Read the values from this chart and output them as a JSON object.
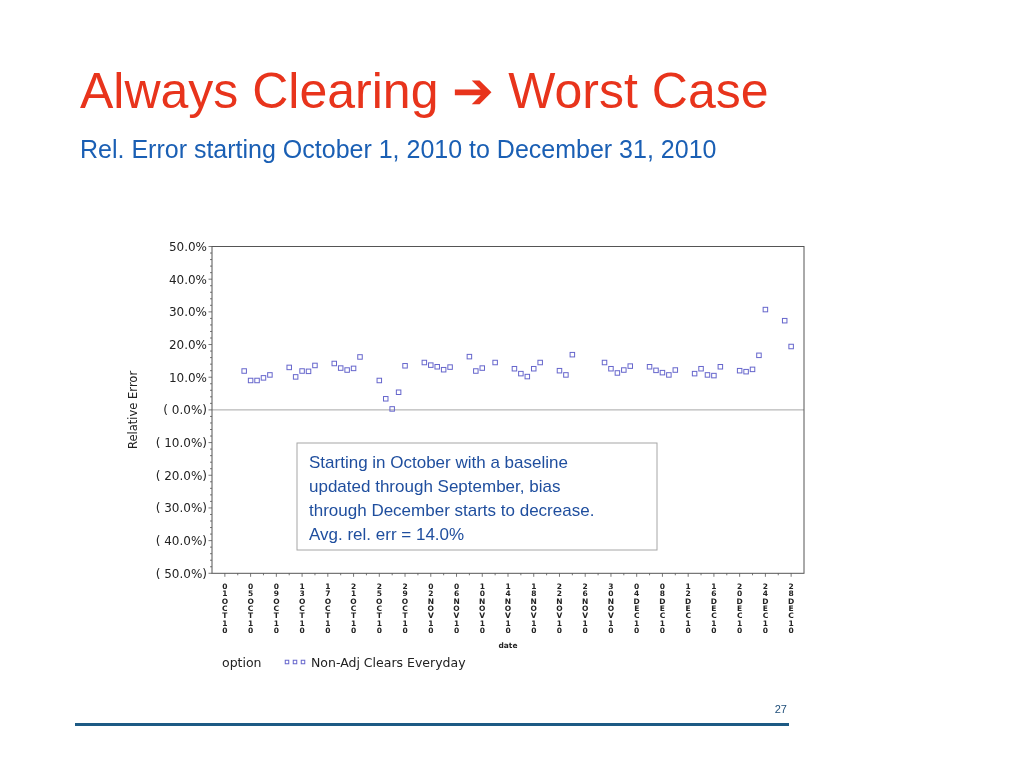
{
  "chart_data": {
    "type": "scatter",
    "title": "Always Clearing ➔ Worst Case",
    "subtitle": "Rel. Error starting October 1, 2010 to December 31, 2010",
    "xlabel": "date",
    "ylabel": "Relative Error",
    "legend_title": "option",
    "legend": "bottom",
    "marker": "square",
    "x": [
      "2010-10-04",
      "2010-10-05",
      "2010-10-06",
      "2010-10-07",
      "2010-10-08",
      "2010-10-11",
      "2010-10-12",
      "2010-10-13",
      "2010-10-14",
      "2010-10-15",
      "2010-10-18",
      "2010-10-19",
      "2010-10-20",
      "2010-10-21",
      "2010-10-22",
      "2010-10-25",
      "2010-10-26",
      "2010-10-27",
      "2010-10-28",
      "2010-10-29",
      "2010-11-01",
      "2010-11-02",
      "2010-11-03",
      "2010-11-04",
      "2010-11-05",
      "2010-11-08",
      "2010-11-09",
      "2010-11-10",
      "2010-11-12",
      "2010-11-15",
      "2010-11-16",
      "2010-11-17",
      "2010-11-18",
      "2010-11-19",
      "2010-11-22",
      "2010-11-23",
      "2010-11-24",
      "2010-11-29",
      "2010-11-30",
      "2010-12-01",
      "2010-12-02",
      "2010-12-03",
      "2010-12-06",
      "2010-12-07",
      "2010-12-08",
      "2010-12-09",
      "2010-12-10",
      "2010-12-13",
      "2010-12-14",
      "2010-12-15",
      "2010-12-16",
      "2010-12-17",
      "2010-12-20",
      "2010-12-21",
      "2010-12-22",
      "2010-12-23",
      "2010-12-24",
      "2010-12-27",
      "2010-12-28"
    ],
    "series": [
      {
        "name": "Non-Adj Clears Everyday",
        "color": "#6666cc",
        "values": [
          11.9,
          9.0,
          9.0,
          9.8,
          10.7,
          13.0,
          10.1,
          11.9,
          11.8,
          13.6,
          14.2,
          12.8,
          12.2,
          12.7,
          16.2,
          9.0,
          3.4,
          0.3,
          5.4,
          13.5,
          14.5,
          13.7,
          13.2,
          12.3,
          13.1,
          16.3,
          11.9,
          12.8,
          14.5,
          12.6,
          11.1,
          10.2,
          12.6,
          14.5,
          12.0,
          10.7,
          16.9,
          14.5,
          12.6,
          11.3,
          12.2,
          13.4,
          13.2,
          12.1,
          11.4,
          10.7,
          12.2,
          11.1,
          12.6,
          10.7,
          10.5,
          13.2,
          12.0,
          11.7,
          12.4,
          16.7,
          30.7,
          27.3,
          19.4
        ]
      }
    ],
    "xlim": [
      "2010-09-29",
      "2010-12-30"
    ],
    "xticks": [
      {
        "value": "2010-10-01",
        "label": "01OCT10"
      },
      {
        "value": "2010-10-03",
        "label": null
      },
      {
        "value": "2010-10-05",
        "label": "05OCT10"
      },
      {
        "value": "2010-10-07",
        "label": null
      },
      {
        "value": "2010-10-09",
        "label": "09OCT10"
      },
      {
        "value": "2010-10-11",
        "label": null
      },
      {
        "value": "2010-10-13",
        "label": "13OCT10"
      },
      {
        "value": "2010-10-15",
        "label": null
      },
      {
        "value": "2010-10-17",
        "label": "17OCT10"
      },
      {
        "value": "2010-10-19",
        "label": null
      },
      {
        "value": "2010-10-21",
        "label": "21OCT10"
      },
      {
        "value": "2010-10-23",
        "label": null
      },
      {
        "value": "2010-10-25",
        "label": "25OCT10"
      },
      {
        "value": "2010-10-27",
        "label": null
      },
      {
        "value": "2010-10-29",
        "label": "29OCT10"
      },
      {
        "value": "2010-10-31",
        "label": null
      },
      {
        "value": "2010-11-02",
        "label": "02NOV10"
      },
      {
        "value": "2010-11-04",
        "label": null
      },
      {
        "value": "2010-11-06",
        "label": "06NOV10"
      },
      {
        "value": "2010-11-08",
        "label": null
      },
      {
        "value": "2010-11-10",
        "label": "10NOV10"
      },
      {
        "value": "2010-11-12",
        "label": null
      },
      {
        "value": "2010-11-14",
        "label": "14NOV10"
      },
      {
        "value": "2010-11-16",
        "label": null
      },
      {
        "value": "2010-11-18",
        "label": "18NOV10"
      },
      {
        "value": "2010-11-20",
        "label": null
      },
      {
        "value": "2010-11-22",
        "label": "22NOV10"
      },
      {
        "value": "2010-11-24",
        "label": null
      },
      {
        "value": "2010-11-26",
        "label": "26NOV10"
      },
      {
        "value": "2010-11-28",
        "label": null
      },
      {
        "value": "2010-11-30",
        "label": "30NOV10"
      },
      {
        "value": "2010-12-02",
        "label": null
      },
      {
        "value": "2010-12-04",
        "label": "04DEC10"
      },
      {
        "value": "2010-12-06",
        "label": null
      },
      {
        "value": "2010-12-08",
        "label": "08DEC10"
      },
      {
        "value": "2010-12-10",
        "label": null
      },
      {
        "value": "2010-12-12",
        "label": "12DEC10"
      },
      {
        "value": "2010-12-14",
        "label": null
      },
      {
        "value": "2010-12-16",
        "label": "16DEC10"
      },
      {
        "value": "2010-12-18",
        "label": null
      },
      {
        "value": "2010-12-20",
        "label": "20DEC10"
      },
      {
        "value": "2010-12-22",
        "label": null
      },
      {
        "value": "2010-12-24",
        "label": "24DEC10"
      },
      {
        "value": "2010-12-26",
        "label": null
      },
      {
        "value": "2010-12-28",
        "label": "28DEC10"
      }
    ],
    "ylim": [
      -50,
      50
    ],
    "yticks": [
      {
        "value": -50,
        "label": "( 50.0%)"
      },
      {
        "value": -48,
        "label": null
      },
      {
        "value": -46,
        "label": null
      },
      {
        "value": -44,
        "label": null
      },
      {
        "value": -42,
        "label": null
      },
      {
        "value": -40,
        "label": "( 40.0%)"
      },
      {
        "value": -38,
        "label": null
      },
      {
        "value": -36,
        "label": null
      },
      {
        "value": -34,
        "label": null
      },
      {
        "value": -32,
        "label": null
      },
      {
        "value": -30,
        "label": "( 30.0%)"
      },
      {
        "value": -28,
        "label": null
      },
      {
        "value": -26,
        "label": null
      },
      {
        "value": -24,
        "label": null
      },
      {
        "value": -22,
        "label": null
      },
      {
        "value": -20,
        "label": "( 20.0%)"
      },
      {
        "value": -18,
        "label": null
      },
      {
        "value": -16,
        "label": null
      },
      {
        "value": -14,
        "label": null
      },
      {
        "value": -12,
        "label": null
      },
      {
        "value": -10,
        "label": "( 10.0%)"
      },
      {
        "value": -8,
        "label": null
      },
      {
        "value": -6,
        "label": null
      },
      {
        "value": -4,
        "label": null
      },
      {
        "value": -2,
        "label": null
      },
      {
        "value": 0,
        "label": "( 0.0%)"
      },
      {
        "value": 2,
        "label": null
      },
      {
        "value": 4,
        "label": null
      },
      {
        "value": 6,
        "label": null
      },
      {
        "value": 8,
        "label": null
      },
      {
        "value": 10,
        "label": "10.0%"
      },
      {
        "value": 12,
        "label": null
      },
      {
        "value": 14,
        "label": null
      },
      {
        "value": 16,
        "label": null
      },
      {
        "value": 18,
        "label": null
      },
      {
        "value": 20,
        "label": "20.0%"
      },
      {
        "value": 22,
        "label": null
      },
      {
        "value": 24,
        "label": null
      },
      {
        "value": 26,
        "label": null
      },
      {
        "value": 28,
        "label": null
      },
      {
        "value": 30,
        "label": "30.0%"
      },
      {
        "value": 32,
        "label": null
      },
      {
        "value": 34,
        "label": null
      },
      {
        "value": 36,
        "label": null
      },
      {
        "value": 38,
        "label": null
      },
      {
        "value": 40,
        "label": "40.0%"
      },
      {
        "value": 42,
        "label": null
      },
      {
        "value": 44,
        "label": null
      },
      {
        "value": 46,
        "label": null
      },
      {
        "value": 48,
        "label": null
      },
      {
        "value": 50,
        "label": "50.0%"
      }
    ],
    "ref_lines": [
      {
        "axis": "y",
        "value": 0,
        "color": "#a6a6a6"
      }
    ],
    "annotations": [
      "Starting in October with a baseline\nupdated through September, bias\nthrough December starts to decrease.\nAvg. rel. err = 14.0%",
      "27"
    ]
  }
}
